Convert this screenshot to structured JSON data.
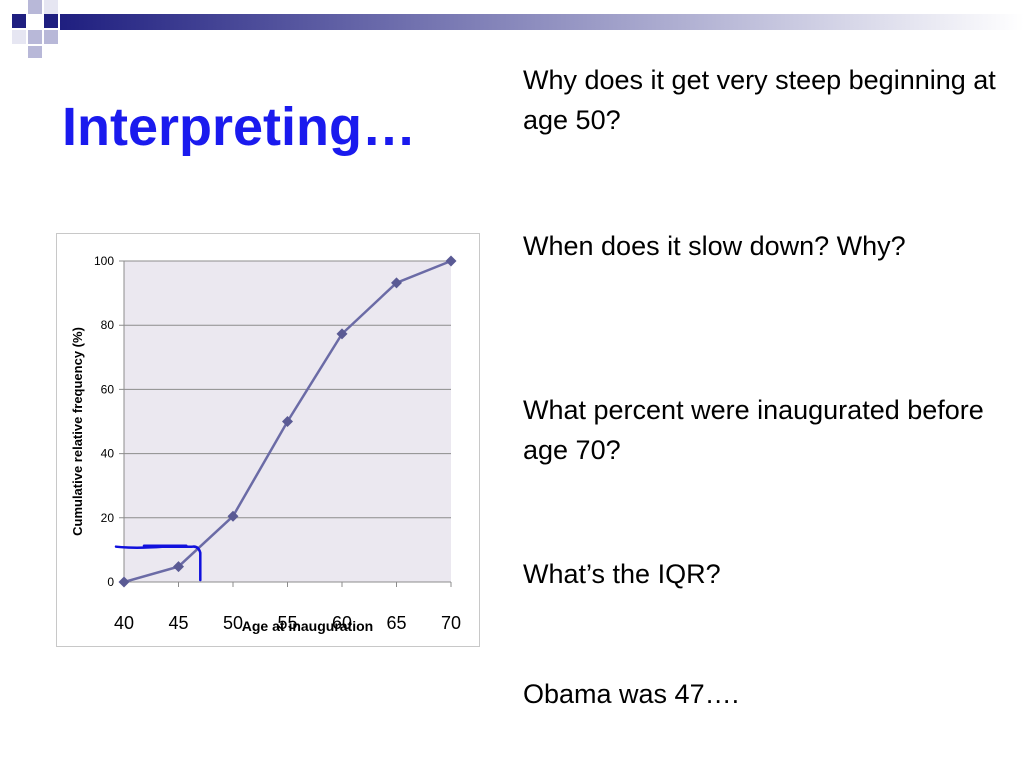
{
  "slide": {
    "title": "Interpreting…",
    "questions": [
      "Why does it get very steep beginning at age 50?",
      "When does it slow down? Why?",
      "What percent were inaugurated before age 70?",
      "What’s the IQR?",
      "Obama was 47…."
    ]
  },
  "colors": {
    "title": "#1a1aee",
    "series": "#6b6ba6",
    "marker": "#5a5a94",
    "plot_background": "#ebe8f0",
    "gridline": "#8c8c8c",
    "annotation": "#1010dd",
    "banner_dark": "#1f1f80",
    "banner_light": "#b8b8d8"
  },
  "chart_data": {
    "type": "line",
    "title": "",
    "xlabel": "Age at inauguration",
    "ylabel": "Cumulative relative frequency (%)",
    "x": [
      40,
      45,
      50,
      55,
      60,
      65,
      70
    ],
    "y": [
      0,
      4.8,
      20.5,
      50,
      77.3,
      93.2,
      100
    ],
    "xlim": [
      40,
      70
    ],
    "ylim": [
      0,
      100
    ],
    "x_ticks": [
      "40",
      "45",
      "50",
      "55",
      "60",
      "65",
      "70"
    ],
    "y_ticks": [
      "0",
      "20",
      "40",
      "60",
      "80",
      "100"
    ],
    "grid": true,
    "legend": "none",
    "annotation": {
      "type": "handwritten",
      "x_value": 47,
      "y_value": 11,
      "description_from_axes": "line drawn from the y-axis across to x = 47 and down to the x-axis"
    }
  }
}
